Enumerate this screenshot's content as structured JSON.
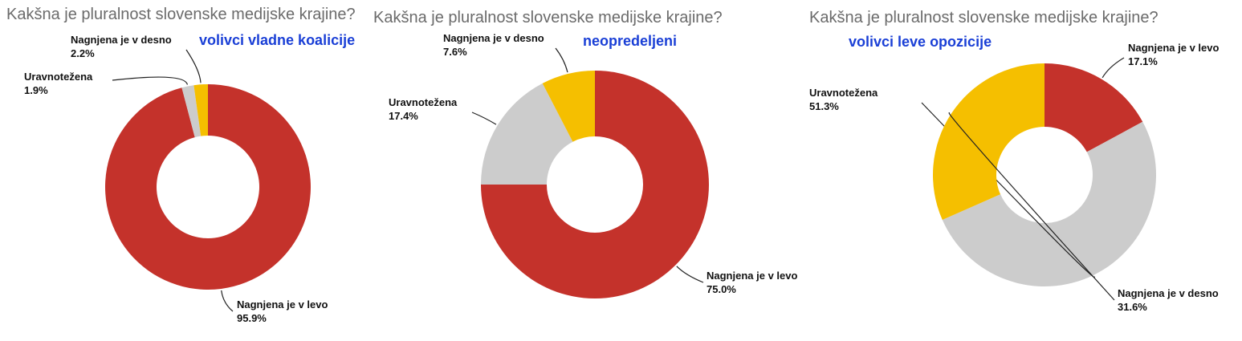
{
  "chart_data": [
    {
      "type": "donut",
      "title": "Kakšna je pluralnost slovenske medijske krajine?",
      "subtitle": "volivci vladne koalicije",
      "categories": [
        "Nagnjena je v levo",
        "Uravnotežena",
        "Nagnjena je v desno"
      ],
      "values": [
        95.9,
        1.9,
        2.2
      ],
      "value_labels": [
        "95.9%",
        "1.9%",
        "2.2%"
      ],
      "colors": [
        "#c4322b",
        "#cccccc",
        "#f5bf00"
      ]
    },
    {
      "type": "donut",
      "title": "Kakšna je pluralnost slovenske medijske krajine?",
      "subtitle": "neopredeljeni",
      "categories": [
        "Nagnjena je v levo",
        "Uravnotežena",
        "Nagnjena je v desno"
      ],
      "values": [
        75.0,
        17.4,
        7.6
      ],
      "value_labels": [
        "75.0%",
        "17.4%",
        "7.6%"
      ],
      "colors": [
        "#c4322b",
        "#cccccc",
        "#f5bf00"
      ]
    },
    {
      "type": "donut",
      "title": "Kakšna je pluralnost slovenske medijske krajine?",
      "subtitle": "volivci leve opozicije",
      "categories": [
        "Nagnjena je v levo",
        "Uravnotežena",
        "Nagnjena je v desno"
      ],
      "values": [
        17.1,
        51.3,
        31.6
      ],
      "value_labels": [
        "17.1%",
        "51.3%",
        "31.6%"
      ],
      "colors": [
        "#c4322b",
        "#cccccc",
        "#f5bf00"
      ]
    }
  ]
}
